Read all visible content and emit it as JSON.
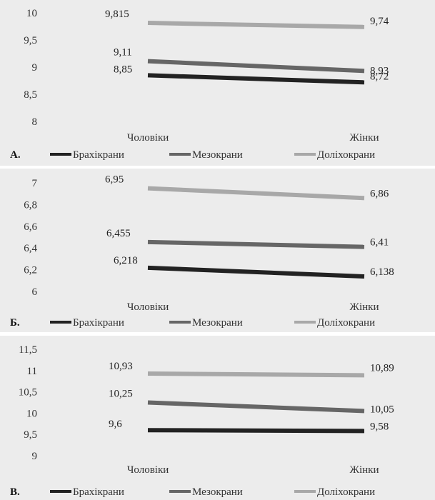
{
  "chart_data": [
    {
      "type": "line",
      "panel_label": "А.",
      "categories": [
        "Чоловіки",
        "Жінки"
      ],
      "ylim": [
        8,
        10
      ],
      "yticks": [
        "10",
        "9,5",
        "9",
        "8,5",
        "8"
      ],
      "ytick_values": [
        10,
        9.5,
        9,
        8.5,
        8
      ],
      "series": [
        {
          "name": "Брахікрани",
          "values": [
            8.85,
            8.72
          ],
          "labels": [
            "8,85",
            "8,72"
          ],
          "color": "#222222"
        },
        {
          "name": "Мезокрани",
          "values": [
            9.11,
            8.93
          ],
          "labels": [
            "9,11",
            "8,93"
          ],
          "color": "#666666"
        },
        {
          "name": "Доліхокрани",
          "values": [
            9.815,
            9.74
          ],
          "labels": [
            "9,815",
            "9,74"
          ],
          "color": "#a8a8a8"
        }
      ],
      "legend": "bottom",
      "grid": true
    },
    {
      "type": "line",
      "panel_label": "Б.",
      "categories": [
        "Чоловіки",
        "Жінки"
      ],
      "ylim": [
        6,
        7
      ],
      "yticks": [
        "7",
        "6,8",
        "6,6",
        "6,4",
        "6,2",
        "6"
      ],
      "ytick_values": [
        7,
        6.8,
        6.6,
        6.4,
        6.2,
        6
      ],
      "series": [
        {
          "name": "Брахікрани",
          "values": [
            6.218,
            6.138
          ],
          "labels": [
            "6,218",
            "6,138"
          ],
          "color": "#222222"
        },
        {
          "name": "Мезокрани",
          "values": [
            6.455,
            6.41
          ],
          "labels": [
            "6,455",
            "6,41"
          ],
          "color": "#666666"
        },
        {
          "name": "Доліхокрани",
          "values": [
            6.95,
            6.86
          ],
          "labels": [
            "6,95",
            "6,86"
          ],
          "color": "#a8a8a8"
        }
      ],
      "legend": "bottom",
      "grid": true
    },
    {
      "type": "line",
      "panel_label": "В.",
      "categories": [
        "Чоловіки",
        "Жінки"
      ],
      "ylim": [
        9,
        11.5
      ],
      "yticks": [
        "11,5",
        "11",
        "10,5",
        "10",
        "9,5",
        "9"
      ],
      "ytick_values": [
        11.5,
        11,
        10.5,
        10,
        9.5,
        9
      ],
      "series": [
        {
          "name": "Брахікрани",
          "values": [
            9.6,
            9.58
          ],
          "labels": [
            "9,6",
            "9,58"
          ],
          "color": "#222222"
        },
        {
          "name": "Мезокрани",
          "values": [
            10.25,
            10.05
          ],
          "labels": [
            "10,25",
            "10,05"
          ],
          "color": "#666666"
        },
        {
          "name": "Доліхокрани",
          "values": [
            10.93,
            10.89
          ],
          "labels": [
            "10,93",
            "10,89"
          ],
          "color": "#a8a8a8"
        }
      ],
      "legend": "bottom",
      "grid": true
    }
  ]
}
